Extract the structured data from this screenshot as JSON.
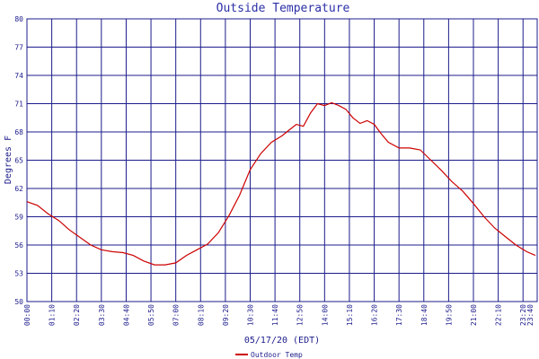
{
  "chart_data": {
    "type": "line",
    "title": "Outside Temperature",
    "xlabel": "05/17/20 (EDT)",
    "ylabel": "Degrees F",
    "ylim": [
      50,
      80
    ],
    "yticks": [
      "50",
      "53",
      "56",
      "59",
      "62",
      "65",
      "68",
      "71",
      "74",
      "77",
      "80"
    ],
    "xticks": [
      "00:00",
      "01:10",
      "02:20",
      "03:30",
      "04:40",
      "05:50",
      "07:00",
      "08:10",
      "09:20",
      "10:30",
      "11:40",
      "12:50",
      "14:00",
      "15:10",
      "16:20",
      "17:30",
      "18:40",
      "19:50",
      "21:00",
      "22:10",
      "23:20",
      "23:40"
    ],
    "grid": true,
    "legend_position": "bottom-center",
    "series": [
      {
        "name": "Outdoor Temp",
        "color": "#cc0000",
        "x": [
          "00:00",
          "00:30",
          "01:00",
          "01:30",
          "02:00",
          "02:30",
          "03:00",
          "03:30",
          "04:00",
          "04:30",
          "05:00",
          "05:30",
          "06:00",
          "06:30",
          "07:00",
          "07:30",
          "08:00",
          "08:30",
          "09:00",
          "09:30",
          "10:00",
          "10:30",
          "11:00",
          "11:30",
          "12:00",
          "12:20",
          "12:40",
          "13:00",
          "13:20",
          "13:40",
          "14:00",
          "14:20",
          "14:40",
          "15:00",
          "15:20",
          "15:40",
          "16:00",
          "16:20",
          "16:40",
          "17:00",
          "17:30",
          "18:00",
          "18:30",
          "19:00",
          "19:30",
          "20:00",
          "20:30",
          "21:00",
          "21:30",
          "22:00",
          "22:30",
          "23:00",
          "23:30",
          "23:55"
        ],
        "y": [
          60.6,
          60.2,
          59.3,
          58.6,
          57.6,
          56.8,
          56.0,
          55.5,
          55.3,
          55.2,
          54.9,
          54.3,
          53.9,
          53.9,
          54.1,
          54.9,
          55.5,
          56.1,
          57.3,
          59.1,
          61.3,
          64.0,
          65.7,
          66.9,
          67.6,
          68.2,
          68.8,
          68.6,
          70.0,
          71.0,
          70.8,
          71.1,
          70.8,
          70.4,
          69.5,
          68.9,
          69.2,
          68.8,
          67.8,
          66.9,
          66.3,
          66.3,
          66.1,
          65.0,
          63.9,
          62.7,
          61.7,
          60.4,
          59.0,
          57.8,
          56.9,
          56.0,
          55.3,
          54.9
        ]
      }
    ]
  }
}
